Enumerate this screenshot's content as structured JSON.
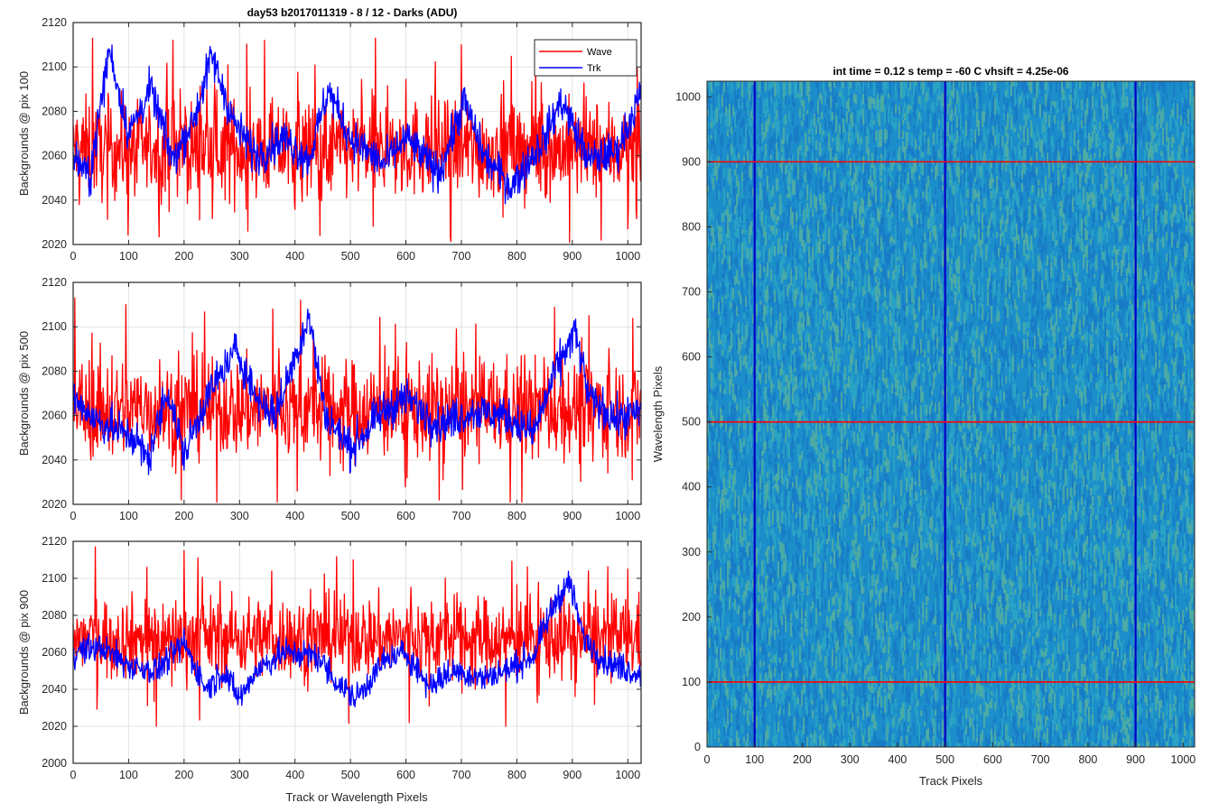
{
  "figure": {
    "title": "day53 b2017011319 - 8 / 12 - Darks (ADU)",
    "xlabel": "Track or Wavelength Pixels"
  },
  "legend": {
    "wave_label": "Wave",
    "trk_label": "Trk",
    "placement": "top-right of top panel",
    "wave_color": "#ff0000",
    "trk_color": "#0000ff"
  },
  "image_panel": {
    "title": "int time = 0.12 s    temp = -60 C    vhsift = 4.25e-06",
    "xlabel": "Track Pixels",
    "ylabel": "Wavelength Pixels"
  },
  "chart_data": [
    {
      "type": "line",
      "ylabel": "Backgrounds @ pix 100",
      "xlim": [
        0,
        1024
      ],
      "ylim": [
        2020,
        2120
      ],
      "xticks": [
        0,
        100,
        200,
        300,
        400,
        500,
        600,
        700,
        800,
        900,
        1000
      ],
      "yticks": [
        2020,
        2040,
        2060,
        2080,
        2100,
        2120
      ],
      "grid": true,
      "series": [
        {
          "name": "Wave",
          "color": "#ff0000",
          "mean": 2063,
          "spread": 11,
          "peaks": [
            {
              "x": 35,
              "y": 2113
            },
            {
              "x": 180,
              "y": 2112
            },
            {
              "x": 345,
              "y": 2112
            },
            {
              "x": 545,
              "y": 2113
            },
            {
              "x": 700,
              "y": 2110
            },
            {
              "x": 315,
              "y": 2026
            },
            {
              "x": 445,
              "y": 2024
            },
            {
              "x": 1000,
              "y": 2027
            }
          ]
        },
        {
          "name": "Trk",
          "color": "#0000ff",
          "mean": 2064,
          "spread": 8,
          "trend": [
            [
              0,
              2060
            ],
            [
              30,
              2050
            ],
            [
              65,
              2108
            ],
            [
              100,
              2070
            ],
            [
              140,
              2090
            ],
            [
              180,
              2058
            ],
            [
              220,
              2078
            ],
            [
              250,
              2105
            ],
            [
              290,
              2075
            ],
            [
              330,
              2060
            ],
            [
              380,
              2068
            ],
            [
              425,
              2058
            ],
            [
              460,
              2090
            ],
            [
              500,
              2068
            ],
            [
              560,
              2056
            ],
            [
              600,
              2068
            ],
            [
              660,
              2052
            ],
            [
              705,
              2085
            ],
            [
              740,
              2060
            ],
            [
              790,
              2046
            ],
            [
              850,
              2068
            ],
            [
              880,
              2085
            ],
            [
              930,
              2058
            ],
            [
              980,
              2062
            ],
            [
              1024,
              2088
            ]
          ]
        }
      ]
    },
    {
      "type": "line",
      "ylabel": "Backgrounds @ pix 500",
      "xlim": [
        0,
        1024
      ],
      "ylim": [
        2020,
        2120
      ],
      "xticks": [
        0,
        100,
        200,
        300,
        400,
        500,
        600,
        700,
        800,
        900,
        1000
      ],
      "yticks": [
        2020,
        2040,
        2060,
        2080,
        2100,
        2120
      ],
      "grid": true,
      "series": [
        {
          "name": "Wave",
          "color": "#ff0000",
          "mean": 2063,
          "spread": 11,
          "peaks": [
            {
              "x": 3,
              "y": 2113
            },
            {
              "x": 95,
              "y": 2110
            },
            {
              "x": 195,
              "y": 2022
            },
            {
              "x": 360,
              "y": 2108
            },
            {
              "x": 410,
              "y": 2112
            },
            {
              "x": 660,
              "y": 2022
            }
          ]
        },
        {
          "name": "Trk",
          "color": "#0000ff",
          "mean": 2062,
          "spread": 8,
          "trend": [
            [
              0,
              2068
            ],
            [
              40,
              2058
            ],
            [
              110,
              2050
            ],
            [
              135,
              2040
            ],
            [
              170,
              2072
            ],
            [
              200,
              2042
            ],
            [
              240,
              2068
            ],
            [
              295,
              2090
            ],
            [
              330,
              2068
            ],
            [
              365,
              2060
            ],
            [
              425,
              2105
            ],
            [
              455,
              2060
            ],
            [
              500,
              2045
            ],
            [
              560,
              2062
            ],
            [
              600,
              2068
            ],
            [
              660,
              2056
            ],
            [
              720,
              2062
            ],
            [
              780,
              2060
            ],
            [
              830,
              2052
            ],
            [
              870,
              2080
            ],
            [
              905,
              2098
            ],
            [
              930,
              2068
            ],
            [
              980,
              2058
            ],
            [
              1024,
              2062
            ]
          ]
        }
      ]
    },
    {
      "type": "line",
      "ylabel": "Backgrounds @ pix 900",
      "xlim": [
        0,
        1024
      ],
      "ylim": [
        2000,
        2120
      ],
      "xticks": [
        0,
        100,
        200,
        300,
        400,
        500,
        600,
        700,
        800,
        900,
        1000
      ],
      "yticks": [
        2000,
        2020,
        2040,
        2060,
        2080,
        2100,
        2120
      ],
      "grid": true,
      "series": [
        {
          "name": "Wave",
          "color": "#ff0000",
          "mean": 2068,
          "spread": 11,
          "peaks": [
            {
              "x": 40,
              "y": 2117
            },
            {
              "x": 150,
              "y": 2020
            },
            {
              "x": 200,
              "y": 2115
            },
            {
              "x": 225,
              "y": 2111
            },
            {
              "x": 505,
              "y": 2110
            },
            {
              "x": 780,
              "y": 2020
            },
            {
              "x": 1000,
              "y": 2105
            }
          ]
        },
        {
          "name": "Trk",
          "color": "#0000ff",
          "mean": 2057,
          "spread": 7,
          "trend": [
            [
              0,
              2060
            ],
            [
              50,
              2063
            ],
            [
              100,
              2053
            ],
            [
              150,
              2050
            ],
            [
              200,
              2065
            ],
            [
              240,
              2040
            ],
            [
              270,
              2050
            ],
            [
              300,
              2035
            ],
            [
              330,
              2050
            ],
            [
              380,
              2060
            ],
            [
              440,
              2058
            ],
            [
              480,
              2042
            ],
            [
              510,
              2035
            ],
            [
              560,
              2055
            ],
            [
              600,
              2060
            ],
            [
              640,
              2042
            ],
            [
              690,
              2050
            ],
            [
              740,
              2046
            ],
            [
              780,
              2050
            ],
            [
              830,
              2058
            ],
            [
              870,
              2088
            ],
            [
              895,
              2098
            ],
            [
              920,
              2068
            ],
            [
              960,
              2055
            ],
            [
              1024,
              2048
            ]
          ]
        }
      ]
    },
    {
      "type": "heatmap",
      "title": "int time = 0.12 s    temp = -60 C    vhsift = 4.25e-06",
      "xlabel": "Track Pixels",
      "ylabel": "Wavelength Pixels",
      "xlim": [
        0,
        1024
      ],
      "ylim": [
        0,
        1024
      ],
      "xticks": [
        0,
        100,
        200,
        300,
        400,
        500,
        600,
        700,
        800,
        900,
        1000
      ],
      "yticks": [
        0,
        100,
        200,
        300,
        400,
        500,
        600,
        700,
        800,
        900,
        1000
      ],
      "base_color": "#1c8ecb",
      "vertical_marker_lines": {
        "x": [
          100,
          500,
          900
        ],
        "color": "#0000c8"
      },
      "horizontal_marker_lines": {
        "y": [
          100,
          500,
          900
        ],
        "color": "#ff0000"
      }
    }
  ]
}
